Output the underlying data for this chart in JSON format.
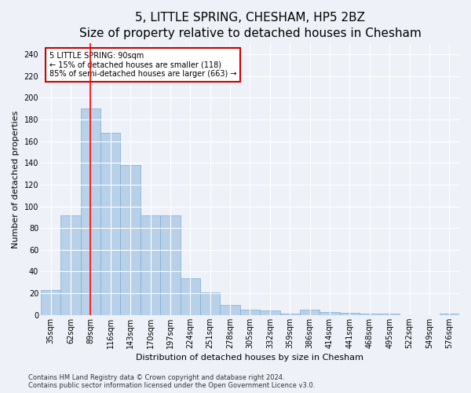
{
  "title": "5, LITTLE SPRING, CHESHAM, HP5 2BZ",
  "subtitle": "Size of property relative to detached houses in Chesham",
  "xlabel": "Distribution of detached houses by size in Chesham",
  "ylabel": "Number of detached properties",
  "categories": [
    "35sqm",
    "62sqm",
    "89sqm",
    "116sqm",
    "143sqm",
    "170sqm",
    "197sqm",
    "224sqm",
    "251sqm",
    "278sqm",
    "305sqm",
    "332sqm",
    "359sqm",
    "386sqm",
    "414sqm",
    "441sqm",
    "468sqm",
    "495sqm",
    "522sqm",
    "549sqm",
    "576sqm"
  ],
  "values": [
    23,
    92,
    190,
    168,
    138,
    92,
    92,
    34,
    21,
    9,
    5,
    4,
    1,
    5,
    3,
    2,
    1,
    1,
    0,
    0,
    1
  ],
  "bar_color": "#b8d0e8",
  "bar_edge_color": "#7aadd4",
  "red_line_index": 2,
  "annotation_text": "5 LITTLE SPRING: 90sqm\n← 15% of detached houses are smaller (118)\n85% of semi-detached houses are larger (663) →",
  "annotation_box_color": "#ffffff",
  "annotation_border_color": "#cc0000",
  "ylim": [
    0,
    250
  ],
  "yticks": [
    0,
    20,
    40,
    60,
    80,
    100,
    120,
    140,
    160,
    180,
    200,
    220,
    240
  ],
  "footer_line1": "Contains HM Land Registry data © Crown copyright and database right 2024.",
  "footer_line2": "Contains public sector information licensed under the Open Government Licence v3.0.",
  "background_color": "#eef2f8",
  "plot_bg_color": "#eef2f8",
  "title_fontsize": 11,
  "tick_fontsize": 7,
  "ylabel_fontsize": 8,
  "xlabel_fontsize": 8,
  "annotation_fontsize": 7,
  "footer_fontsize": 6
}
